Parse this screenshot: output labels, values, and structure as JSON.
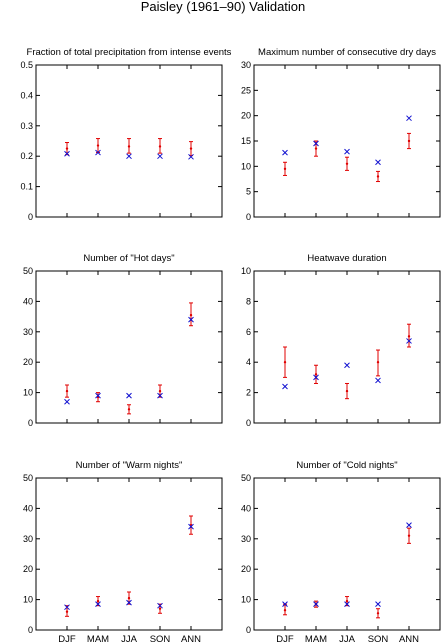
{
  "figure_title": "Paisley (1961–90) Validation",
  "colors": {
    "observed": "#e00000",
    "model": "#1010d0",
    "axes": "#000000"
  },
  "chart_data": [
    {
      "type": "scatter",
      "title": "Fraction of total precipitation from intense events",
      "categories": [
        "DJF",
        "MAM",
        "JJA",
        "SON",
        "ANN"
      ],
      "ylim": [
        0,
        0.5
      ],
      "yticks": [
        0,
        0.1,
        0.2,
        0.3,
        0.4,
        0.5
      ],
      "ytick_labels": [
        "0",
        "0.1",
        "0.2",
        "0.3",
        "0.4",
        "0.5"
      ],
      "show_xtick_labels": false,
      "grid": false,
      "series": [
        {
          "marker": "errorbar",
          "color": "#e00000",
          "values": [
            0.225,
            0.235,
            0.232,
            0.232,
            0.225
          ],
          "low": [
            0.205,
            0.212,
            0.21,
            0.21,
            0.202
          ],
          "high": [
            0.245,
            0.258,
            0.258,
            0.258,
            0.248
          ]
        },
        {
          "marker": "x",
          "color": "#1010d0",
          "values": [
            0.208,
            0.212,
            0.2,
            0.2,
            0.198
          ]
        }
      ]
    },
    {
      "type": "scatter",
      "title": "Maximum number of consecutive dry days",
      "categories": [
        "DJF",
        "MAM",
        "JJA",
        "SON",
        "ANN"
      ],
      "ylim": [
        0,
        30
      ],
      "yticks": [
        0,
        5,
        10,
        15,
        20,
        25,
        30
      ],
      "ytick_labels": [
        "0",
        "5",
        "10",
        "15",
        "20",
        "25",
        "30"
      ],
      "show_xtick_labels": false,
      "grid": false,
      "series": [
        {
          "marker": "errorbar",
          "color": "#e00000",
          "values": [
            9.5,
            13.5,
            10.5,
            8,
            15
          ],
          "low": [
            8.2,
            12,
            9.2,
            7,
            13.5
          ],
          "high": [
            10.8,
            15,
            11.8,
            9,
            16.5
          ]
        },
        {
          "marker": "x",
          "color": "#1010d0",
          "values": [
            12.7,
            14.5,
            12.9,
            10.8,
            19.5
          ]
        }
      ]
    },
    {
      "type": "scatter",
      "title": "Number of \"Hot days\"",
      "categories": [
        "DJF",
        "MAM",
        "JJA",
        "SON",
        "ANN"
      ],
      "ylim": [
        0,
        50
      ],
      "yticks": [
        0,
        10,
        20,
        30,
        40,
        50
      ],
      "ytick_labels": [
        "0",
        "10",
        "20",
        "30",
        "40",
        "50"
      ],
      "show_xtick_labels": false,
      "grid": false,
      "series": [
        {
          "marker": "errorbar",
          "color": "#e00000",
          "values": [
            10.5,
            8.5,
            4.5,
            10.5,
            35.5
          ],
          "low": [
            8.5,
            7,
            3,
            8.5,
            32
          ],
          "high": [
            12.5,
            10,
            6,
            12.5,
            39.5
          ]
        },
        {
          "marker": "x",
          "color": "#1010d0",
          "values": [
            7,
            9,
            9,
            9,
            34
          ]
        }
      ]
    },
    {
      "type": "scatter",
      "title": "Heatwave duration",
      "categories": [
        "DJF",
        "MAM",
        "JJA",
        "SON",
        "ANN"
      ],
      "ylim": [
        0,
        10
      ],
      "yticks": [
        0,
        2,
        4,
        6,
        8,
        10
      ],
      "ytick_labels": [
        "0",
        "2",
        "4",
        "6",
        "8",
        "10"
      ],
      "show_xtick_labels": false,
      "grid": false,
      "series": [
        {
          "marker": "errorbar",
          "color": "#e00000",
          "values": [
            4,
            3.2,
            2.1,
            4,
            5.7
          ],
          "low": [
            3,
            2.6,
            1.6,
            3.1,
            5
          ],
          "high": [
            5,
            3.8,
            2.6,
            4.8,
            6.5
          ]
        },
        {
          "marker": "x",
          "color": "#1010d0",
          "values": [
            2.4,
            3,
            3.8,
            2.8,
            5.4
          ]
        }
      ]
    },
    {
      "type": "scatter",
      "title": "Number of \"Warm nights\"",
      "categories": [
        "DJF",
        "MAM",
        "JJA",
        "SON",
        "ANN"
      ],
      "ylim": [
        0,
        50
      ],
      "yticks": [
        0,
        10,
        20,
        30,
        40,
        50
      ],
      "ytick_labels": [
        "0",
        "10",
        "20",
        "30",
        "40",
        "50"
      ],
      "show_xtick_labels": true,
      "grid": false,
      "series": [
        {
          "marker": "errorbar",
          "color": "#e00000",
          "values": [
            6,
            9.5,
            10.5,
            7,
            34.5
          ],
          "low": [
            4.5,
            8,
            8.5,
            5.5,
            31.5
          ],
          "high": [
            8,
            11,
            12.5,
            8.5,
            37.5
          ]
        },
        {
          "marker": "x",
          "color": "#1010d0",
          "values": [
            7.5,
            8.5,
            9,
            8,
            34
          ]
        }
      ]
    },
    {
      "type": "scatter",
      "title": "Number of \"Cold nights\"",
      "categories": [
        "DJF",
        "MAM",
        "JJA",
        "SON",
        "ANN"
      ],
      "ylim": [
        0,
        50
      ],
      "yticks": [
        0,
        10,
        20,
        30,
        40,
        50
      ],
      "ytick_labels": [
        "0",
        "10",
        "20",
        "30",
        "40",
        "50"
      ],
      "show_xtick_labels": true,
      "grid": false,
      "series": [
        {
          "marker": "errorbar",
          "color": "#e00000",
          "values": [
            6.5,
            8.5,
            9.5,
            5.5,
            31
          ],
          "low": [
            5,
            7.5,
            8,
            4,
            28.5
          ],
          "high": [
            8.5,
            9.5,
            11,
            7,
            33.5
          ]
        },
        {
          "marker": "x",
          "color": "#1010d0",
          "values": [
            8.5,
            8.5,
            8.5,
            8.5,
            34.5
          ]
        }
      ]
    }
  ]
}
